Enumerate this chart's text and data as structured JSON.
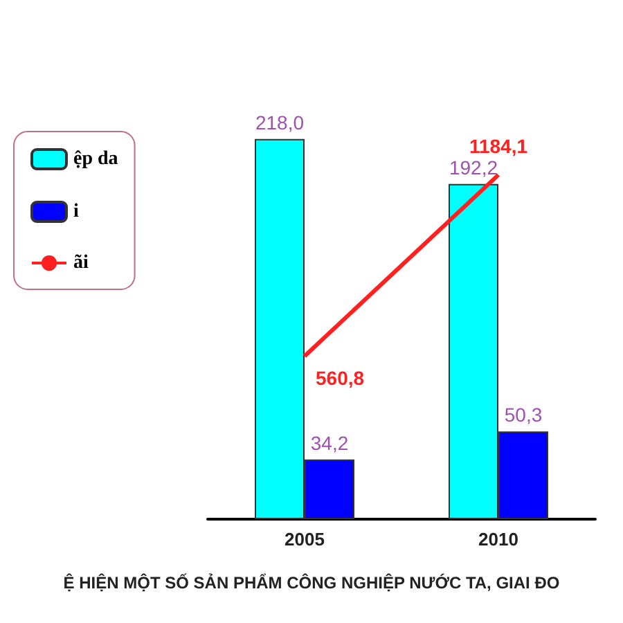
{
  "chart_data": {
    "type": "bar",
    "title": "Ệ HIỆN MỘT SỐ SẢN PHẨM CÔNG NGHIỆP NƯỚC TA, GIAI ĐO",
    "categories": [
      "2005",
      "2010"
    ],
    "series": [
      {
        "name": "ệp da",
        "color": "#00ffff",
        "values": [
          218.0,
          192.2
        ],
        "value_labels": [
          "218,0",
          "192,2"
        ]
      },
      {
        "name": "i",
        "color": "#0000ff",
        "values": [
          34.2,
          50.3
        ],
        "value_labels": [
          "34,2",
          "50,3"
        ]
      },
      {
        "name": "ãi",
        "type": "line",
        "axis": "y2",
        "color": "#ff2020",
        "values": [
          560.8,
          1184.1
        ],
        "value_labels": [
          "560,8",
          "1184,1"
        ]
      }
    ],
    "legend": "top left",
    "tick_labels": "x"
  }
}
